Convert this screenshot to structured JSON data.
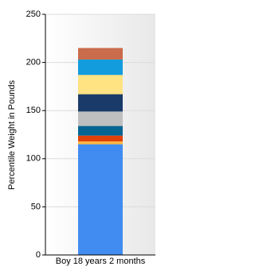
{
  "chart_data": {
    "type": "stacked_bar",
    "y_label": "Percentile Weight in Pounds",
    "categories": [
      "Boy 18 years 2 months"
    ],
    "series": [
      {
        "color": "#418cf0",
        "values": [
          115
        ]
      },
      {
        "color": "#fcb441",
        "values": [
          3
        ]
      },
      {
        "color": "#e0400a",
        "values": [
          6
        ]
      },
      {
        "color": "#056492",
        "values": [
          10
        ]
      },
      {
        "color": "#bfbfbf",
        "values": [
          15
        ]
      },
      {
        "color": "#1a3b69",
        "values": [
          18
        ]
      },
      {
        "color": "#ffe382",
        "values": [
          20
        ]
      },
      {
        "color": "#129cdd",
        "values": [
          16
        ]
      },
      {
        "color": "#ca6b4b",
        "values": [
          12
        ]
      }
    ],
    "ylim": [
      0,
      250
    ],
    "yticks": [
      0,
      50,
      100,
      150,
      200,
      250
    ],
    "grid": true
  }
}
